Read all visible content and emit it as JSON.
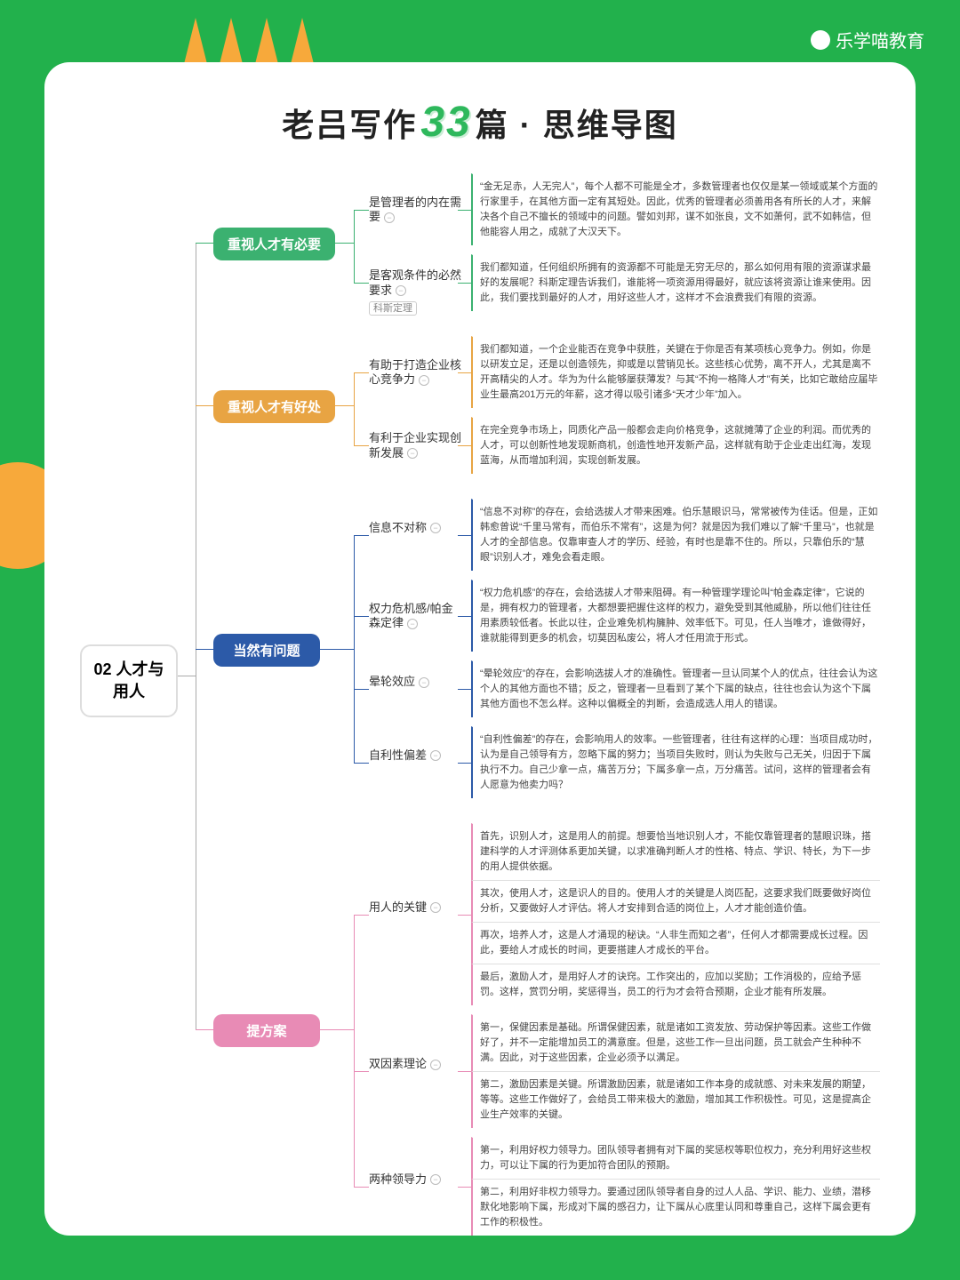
{
  "brand": "乐学喵教育",
  "title_pre": "老吕写作",
  "title_num": "33",
  "title_post": "篇 · 思维导图",
  "root": "02 人才与用人",
  "colors": {
    "green": "#3bb170",
    "orange": "#e8a443",
    "blue": "#2c5aa8",
    "pink": "#e88bb5",
    "bg": "#22b14c"
  },
  "branches": [
    {
      "id": "b1",
      "color": "green",
      "label": "重视人才有必要",
      "subs": [
        {
          "label": "是管理者的内在需要",
          "tag": "",
          "leaves": [
            "“金无足赤，人无完人”，每个人都不可能是全才，多数管理者也仅仅是某一领域或某个方面的行家里手，在其他方面一定有其短处。因此，优秀的管理者必须善用各有所长的人才，来解决各个自己不擅长的领域中的问题。譬如刘邦，谋不如张良，文不如萧何，武不如韩信，但他能容人用之，成就了大汉天下。"
          ]
        },
        {
          "label": "是客观条件的必然要求",
          "tag": "科斯定理",
          "leaves": [
            "我们都知道，任何组织所拥有的资源都不可能是无穷无尽的，那么如何用有限的资源谋求最好的发展呢？科斯定理告诉我们，谁能将一项资源用得最好，就应该将资源让谁来使用。因此，我们要找到最好的人才，用好这些人才，这样才不会浪费我们有限的资源。"
          ]
        }
      ]
    },
    {
      "id": "b2",
      "color": "orange",
      "label": "重视人才有好处",
      "subs": [
        {
          "label": "有助于打造企业核心竞争力",
          "tag": "",
          "leaves": [
            "我们都知道，一个企业能否在竞争中获胜，关键在于你是否有某项核心竞争力。例如，你是以研发立足，还是以创造领先，抑或是以营销见长。这些核心优势，离不开人，尤其是离不开高精尖的人才。华为为什么能够屡获薄发？与其“不拘一格降人才”有关，比如它敢给应届毕业生最高201万元的年薪，这才得以吸引诸多“天才少年”加入。"
          ]
        },
        {
          "label": "有利于企业实现创新发展",
          "tag": "",
          "leaves": [
            "在完全竞争市场上，同质化产品一般都会走向价格竞争，这就摊薄了企业的利润。而优秀的人才，可以创新性地发现新商机，创造性地开发新产品，这样就有助于企业走出红海，发现蓝海，从而增加利润，实现创新发展。"
          ]
        }
      ]
    },
    {
      "id": "b3",
      "color": "blue",
      "label": "当然有问题",
      "subs": [
        {
          "label": "信息不对称",
          "tag": "",
          "leaves": [
            "“信息不对称”的存在，会给选拔人才带来困难。伯乐慧眼识马，常常被传为佳话。但是，正如韩愈曾说“千里马常有，而伯乐不常有”，这是为何？就是因为我们难以了解“千里马”，也就是人才的全部信息。仅靠审查人才的学历、经验，有时也是靠不住的。所以，只靠伯乐的“慧眼”识别人才，难免会看走眼。"
          ]
        },
        {
          "label": "权力危机感/帕金森定律",
          "tag": "",
          "leaves": [
            "“权力危机感”的存在，会给选拔人才带来阻碍。有一种管理学理论叫“帕金森定律”，它说的是，拥有权力的管理者，大都想要把握住这样的权力，避免受到其他威胁，所以他们往往任用素质较低者。长此以往，企业难免机构臃肿、效率低下。可见，任人当唯才，谁做得好，谁就能得到更多的机会，切莫因私废公，将人才任用流于形式。"
          ]
        },
        {
          "label": "晕轮效应",
          "tag": "",
          "leaves": [
            "“晕轮效应”的存在，会影响选拔人才的准确性。管理者一旦认同某个人的优点，往往会认为这个人的其他方面也不错；反之，管理者一旦看到了某个下属的缺点，往往也会认为这个下属其他方面也不怎么样。这种以偏概全的判断，会造成选人用人的错误。"
          ]
        },
        {
          "label": "自利性偏差",
          "tag": "",
          "leaves": [
            "“自利性偏差”的存在，会影响用人的效率。一些管理者，往往有这样的心理：当项目成功时，认为是自己领导有方，忽略下属的努力；当项目失败时，则认为失败与己无关，归因于下属执行不力。自己少拿一点，痛苦万分；下属多拿一点，万分痛苦。试问，这样的管理者会有人愿意为他卖力吗？"
          ]
        }
      ]
    },
    {
      "id": "b4",
      "color": "pink",
      "label": "提方案",
      "subs": [
        {
          "label": "用人的关键",
          "tag": "",
          "leaves": [
            "首先，识别人才，这是用人的前提。想要恰当地识别人才，不能仅靠管理者的慧眼识珠，搭建科学的人才评测体系更加关键，以求准确判断人才的性格、特点、学识、特长，为下一步的用人提供依据。",
            "其次，使用人才，这是识人的目的。使用人才的关键是人岗匹配，这要求我们既要做好岗位分析，又要做好人才评估。将人才安排到合适的岗位上，人才才能创造价值。",
            "再次，培养人才，这是人才涌现的秘诀。“人非生而知之者”，任何人才都需要成长过程。因此，要给人才成长的时间，更要搭建人才成长的平台。",
            "最后，激励人才，是用好人才的诀窍。工作突出的，应加以奖励；工作消极的，应给予惩罚。这样，赏罚分明，奖惩得当，员工的行为才会符合预期，企业才能有所发展。"
          ]
        },
        {
          "label": "双因素理论",
          "tag": "",
          "leaves": [
            "第一，保健因素是基础。所谓保健因素，就是诸如工资发放、劳动保护等因素。这些工作做好了，并不一定能增加员工的满意度。但是，这些工作一旦出问题，员工就会产生种种不满。因此，对于这些因素，企业必须予以满足。",
            "第二，激励因素是关键。所谓激励因素，就是诸如工作本身的成就感、对未来发展的期望，等等。这些工作做好了，会给员工带来极大的激励，增加其工作积极性。可见，这是提高企业生产效率的关键。"
          ]
        },
        {
          "label": "两种领导力",
          "tag": "",
          "leaves": [
            "第一，利用好权力领导力。团队领导者拥有对下属的奖惩权等职位权力，充分利用好这些权力，可以让下属的行为更加符合团队的预期。",
            "第二，利用好非权力领导力。要通过团队领导者自身的过人人品、学识、能力、业绩，潜移默化地影响下属，形成对下属的感召力，让下属从心底里认同和尊重自己，这样下属会更有工作的积极性。"
          ]
        }
      ]
    }
  ]
}
